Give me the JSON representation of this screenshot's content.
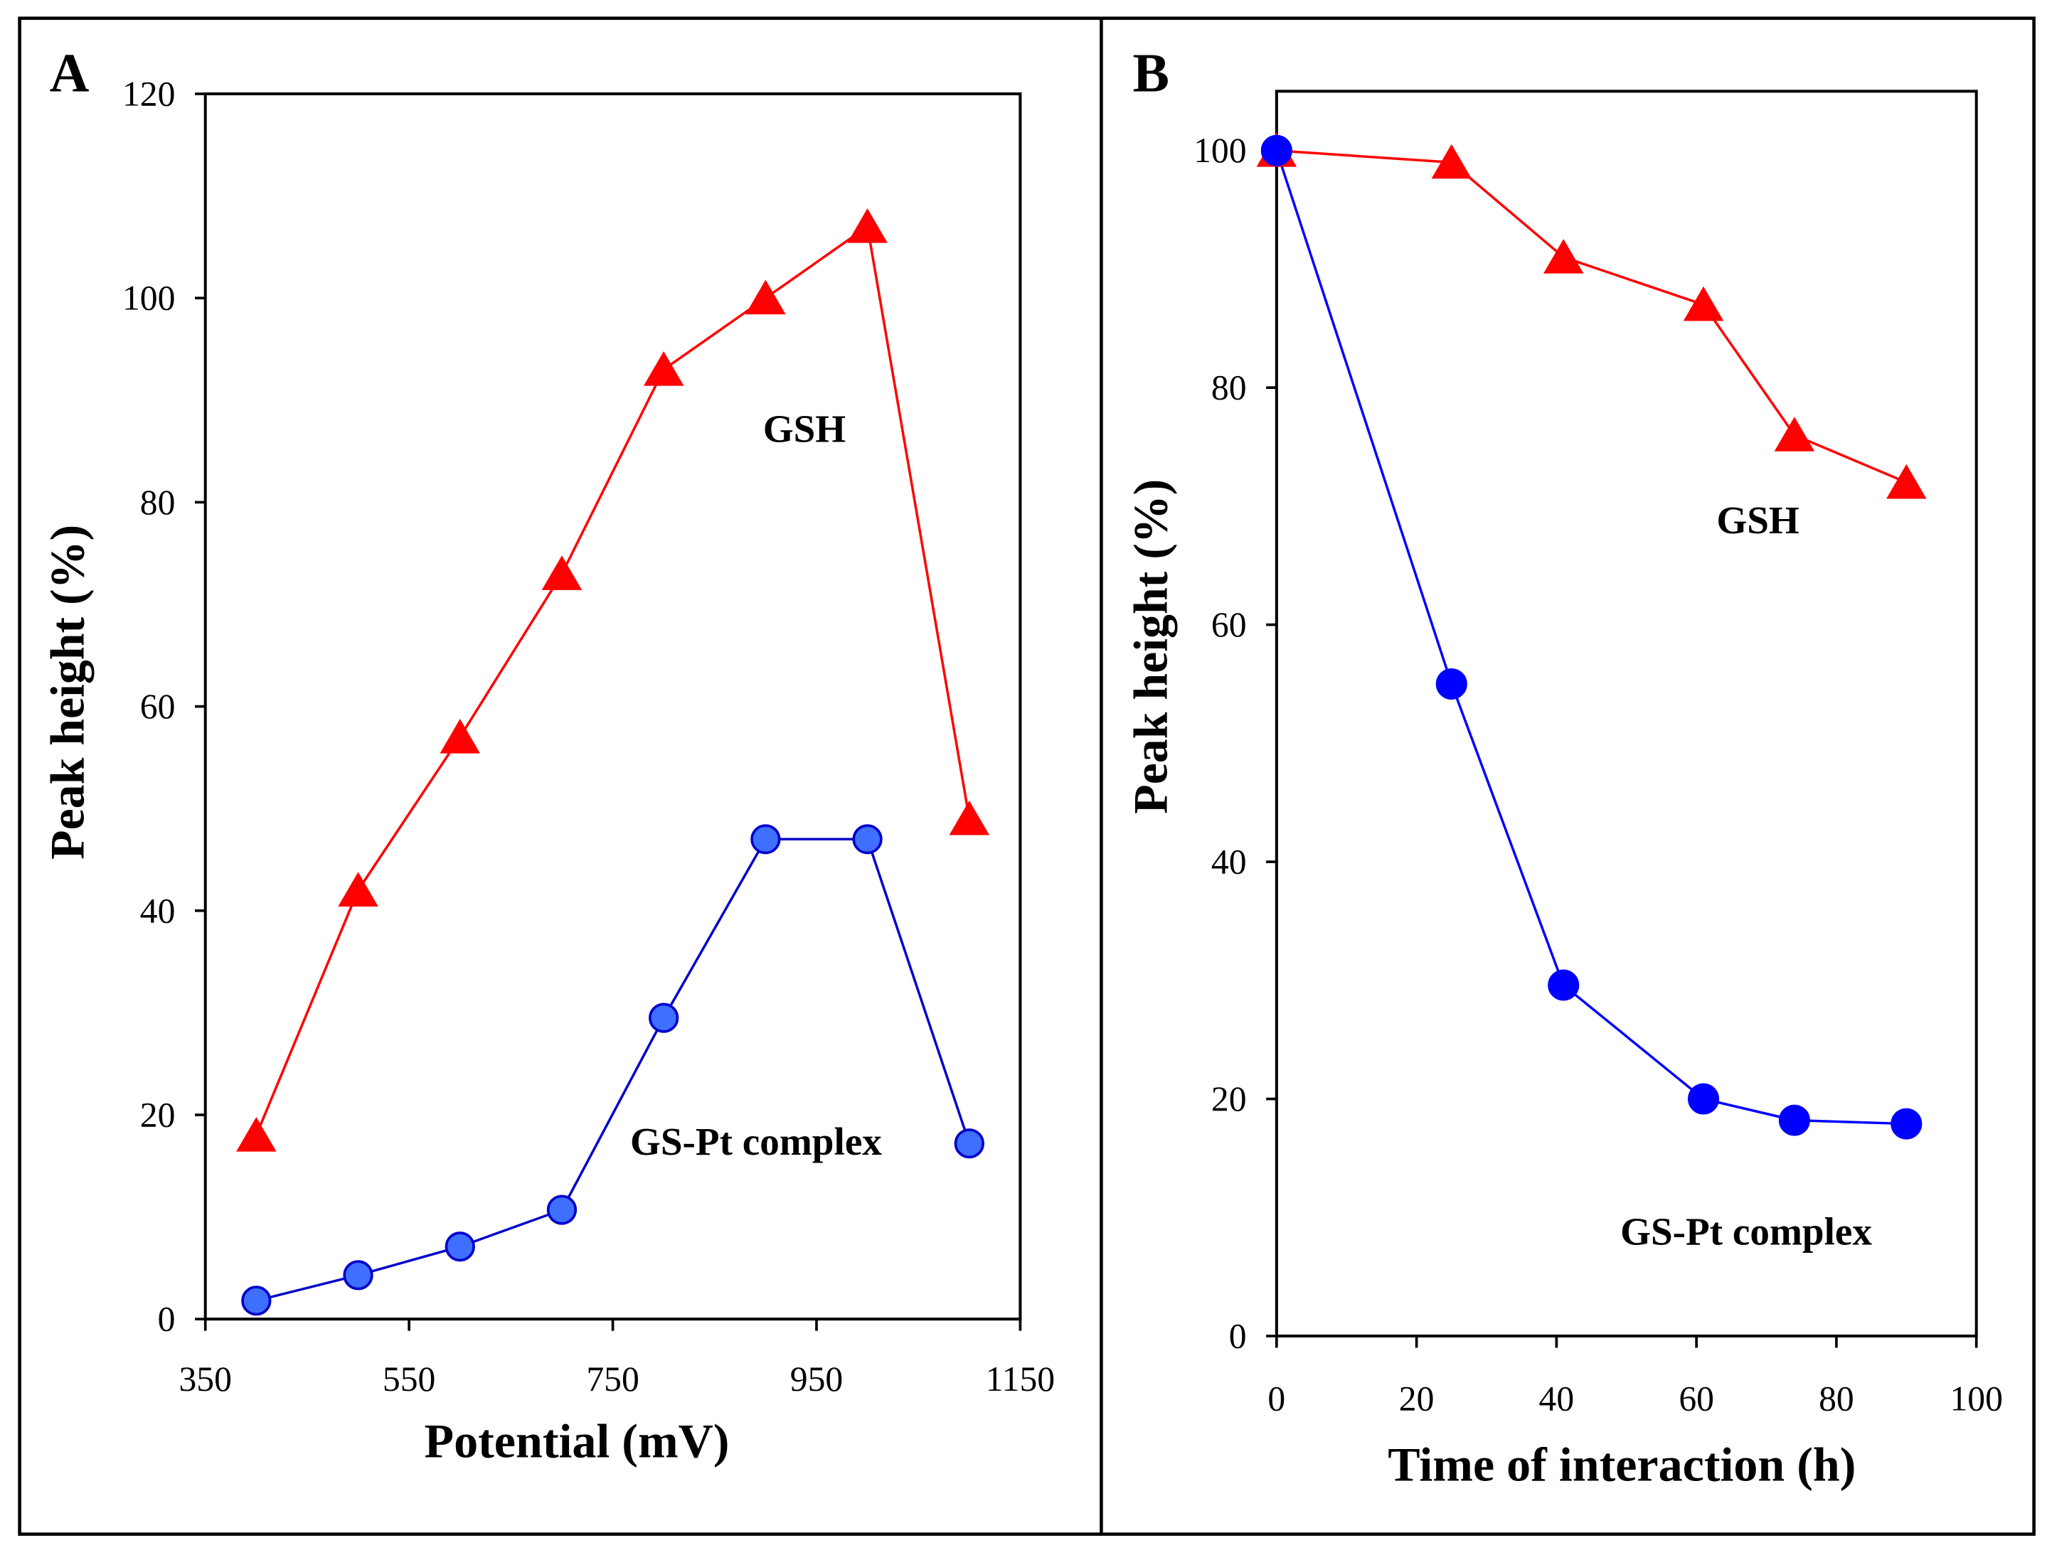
{
  "chart_data": [
    {
      "panel_label": "A",
      "type": "line",
      "title": "",
      "xlabel": "Potential (mV)",
      "ylabel": "Peak height (%)",
      "xlim": [
        350,
        1150
      ],
      "ylim": [
        0,
        120
      ],
      "xticks": [
        350,
        550,
        750,
        950,
        1150
      ],
      "yticks": [
        0,
        20,
        40,
        60,
        80,
        100,
        120
      ],
      "grid": false,
      "x": [
        400,
        500,
        600,
        700,
        800,
        900,
        1000,
        1100
      ],
      "series": [
        {
          "name": "GSH",
          "marker": "triangle",
          "color": "#FF0000",
          "fill": "#FF0000",
          "values": [
            18,
            42,
            57,
            73,
            93,
            100,
            107,
            49
          ]
        },
        {
          "name": "GS-Pt complex",
          "marker": "circle",
          "color": "#0000CC",
          "fill": "#3F6FFF",
          "values": [
            1.8,
            4.3,
            7.1,
            10.7,
            29.5,
            47,
            47,
            17.2
          ]
        }
      ]
    },
    {
      "panel_label": "B",
      "type": "line",
      "title": "",
      "xlabel": "Time of interaction (h)",
      "ylabel": "Peak height (%)",
      "xlim": [
        0,
        100
      ],
      "ylim": [
        0,
        105
      ],
      "xticks": [
        0,
        20,
        40,
        60,
        80,
        100
      ],
      "yticks": [
        0,
        20,
        40,
        60,
        80,
        100
      ],
      "grid": false,
      "x": [
        0,
        25,
        41,
        61,
        74,
        90
      ],
      "series": [
        {
          "name": "GSH",
          "marker": "triangle",
          "color": "#FF0000",
          "fill": "#FF0000",
          "values": [
            100,
            99,
            91,
            87,
            76,
            72
          ]
        },
        {
          "name": "GS-Pt complex",
          "marker": "circle",
          "color": "#0000FF",
          "fill": "#0000FF",
          "values": [
            100,
            55,
            29.6,
            20,
            18.2,
            17.9
          ]
        }
      ]
    }
  ]
}
